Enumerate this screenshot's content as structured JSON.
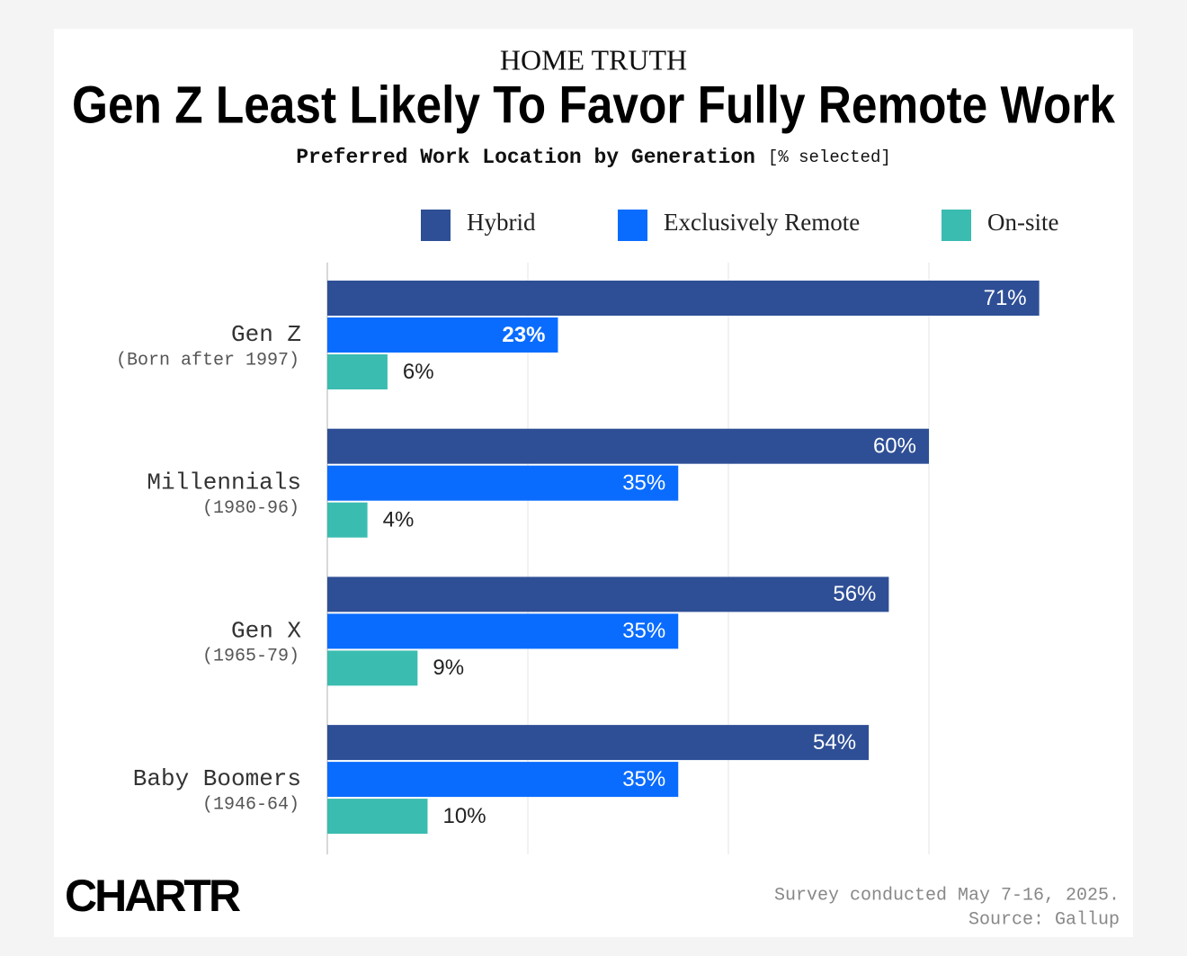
{
  "chart_data": {
    "type": "bar",
    "orientation": "horizontal",
    "kicker": "HOME TRUTH",
    "title": "Gen Z Least Likely To Favor Fully Remote Work",
    "subtitle": "Preferred Work Location by Generation",
    "subtitle_unit": "[% selected]",
    "categories": [
      "Gen Z",
      "Millennials",
      "Gen X",
      "Baby Boomers"
    ],
    "category_notes": [
      "(Born after 1997)",
      "(1980-96)",
      "(1965-79)",
      "(1946-64)"
    ],
    "series": [
      {
        "name": "Hybrid",
        "color": "#2e4f96",
        "values": [
          71,
          60,
          56,
          54
        ],
        "value_labels": [
          "71%",
          "60%",
          "56%",
          "54%"
        ]
      },
      {
        "name": "Exclusively Remote",
        "color": "#0a6cff",
        "values": [
          23,
          35,
          35,
          35
        ],
        "value_labels": [
          "23%",
          "35%",
          "35%",
          "35%"
        ]
      },
      {
        "name": "On-site",
        "color": "#3bbcb0",
        "values": [
          6,
          4,
          9,
          10
        ],
        "value_labels": [
          "6%",
          "4%",
          "9%",
          "10%"
        ]
      }
    ],
    "xlim": [
      0,
      80
    ],
    "xticks": [
      0,
      20,
      40,
      60
    ],
    "grid": true,
    "legend": "top-right",
    "logo": "CHARTR",
    "note": "Survey conducted May 7-16, 2025.",
    "source": "Source: Gallup"
  }
}
